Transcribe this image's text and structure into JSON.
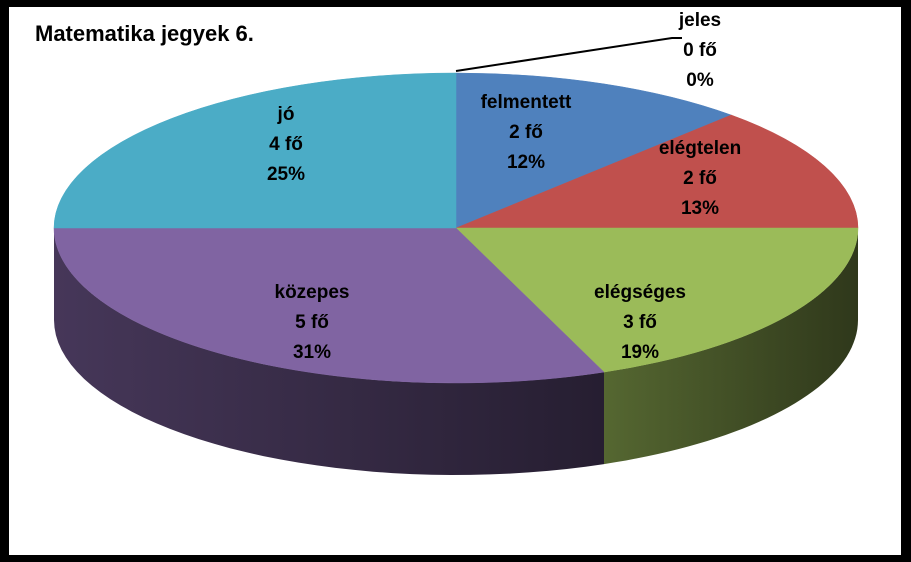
{
  "chart_data": {
    "type": "pie",
    "title": "Matematika jegyek 6.",
    "unit": "fő",
    "slices": [
      {
        "name": "felmentett",
        "count": 2,
        "count_label": "2 fő",
        "percent": 12,
        "percent_label": "12%",
        "color": "#4f81bd"
      },
      {
        "name": "elégtelen",
        "count": 2,
        "count_label": "2 fő",
        "percent": 13,
        "percent_label": "13%",
        "color": "#c0504d"
      },
      {
        "name": "elégséges",
        "count": 3,
        "count_label": "3 fő",
        "percent": 19,
        "percent_label": "19%",
        "color": "#9bbb59"
      },
      {
        "name": "közepes",
        "count": 5,
        "count_label": "5 fő",
        "percent": 31,
        "percent_label": "31%",
        "color": "#8064a2"
      },
      {
        "name": "jó",
        "count": 4,
        "count_label": "4 fő",
        "percent": 25,
        "percent_label": "25%",
        "color": "#4bacc6"
      },
      {
        "name": "jeles",
        "count": 0,
        "count_label": "0 fő",
        "percent": 0,
        "percent_label": "0%",
        "color": "#f79646"
      }
    ],
    "style": "3d-exploded-free",
    "legend": "none"
  }
}
